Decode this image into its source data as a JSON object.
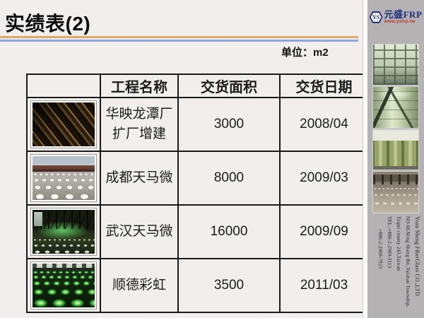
{
  "slide": {
    "title": "实绩表(2)",
    "unit_label": "单位：m2"
  },
  "logo": {
    "badge_text": "YS",
    "company_cn": "元盛FRP",
    "website": "www.ysfrp.tw"
  },
  "table": {
    "headers": [
      "",
      "工程名称",
      "交货面积",
      "交货日期"
    ],
    "rows": [
      {
        "photo": "factory-interior-diagonal-beams",
        "name": "华映龙潭厂\n扩厂增建",
        "area": "3000",
        "date": "2008/04"
      },
      {
        "photo": "construction-site-white-molds",
        "name": "成都天马微",
        "area": "8000",
        "date": "2009/03"
      },
      {
        "photo": "dark-interior-green-dot-floor",
        "name": "武汉天马微",
        "area": "16000",
        "date": "2009/09"
      },
      {
        "photo": "green-dome-rows",
        "name": "顺德彩虹",
        "area": "3500",
        "date": "2011/03"
      }
    ]
  },
  "sidebar": {
    "images": [
      "waffle-ceiling-photo",
      "frp-tank-closeup-photo",
      "storage-tanks-row-photo",
      "factory-floor-photo"
    ],
    "address_lines": [
      "Yuan Sheng FiberGlass CO.,LTD",
      "NO.68,Ming Sheng Rd.,Taishan Township,",
      "Taipei county 243,Taiwan",
      "TEL.:+886-2-2909-3113",
      "+886-2-2909-7923"
    ]
  },
  "colors": {
    "accent_orange": "#dfa867",
    "accent_blue": "#8ca8d8",
    "slide_bg": "#f2eeee",
    "sidebar_bg": "#b4b2b3",
    "logo_navy": "#1c2c7c",
    "logo_red": "#c03030"
  }
}
